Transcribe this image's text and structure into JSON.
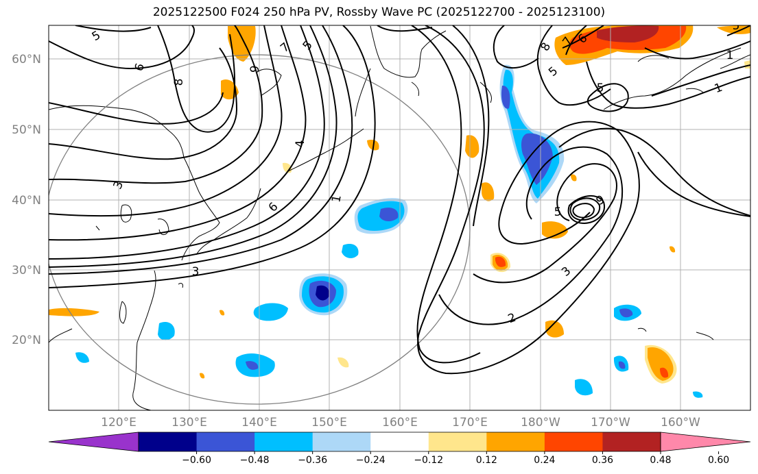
{
  "title": "2025122500 F024 250 hPa PV, Rossby Wave PC (2025122700 - 2025123100)",
  "latitude_labels": [
    "60°N",
    "50°N",
    "40°N",
    "30°N",
    "20°N"
  ],
  "longitude_labels": [
    "120°E",
    "130°E",
    "140°E",
    "150°E",
    "160°E",
    "170°E",
    "180°W",
    "170°W",
    "160°W"
  ],
  "contour_labels": [
    "5",
    "6",
    "8",
    "7",
    "5",
    "9",
    "4",
    "3",
    "6",
    "1",
    "3",
    "8",
    "7",
    "6",
    "5",
    "5",
    "5",
    "9",
    "3",
    "2",
    "1",
    "1",
    "5"
  ],
  "colorbar": {
    "tick_labels": [
      "−0.60",
      "−0.48",
      "−0.36",
      "−0.24",
      "−0.12",
      "0.12",
      "0.24",
      "0.36",
      "0.48",
      "0.60"
    ],
    "colors": [
      "#9933cc",
      "#00008b",
      "#3b55d6",
      "#00bfff",
      "#add8f7",
      "#ffffff",
      "#ffe68c",
      "#ffa500",
      "#ff4500",
      "#b22222",
      "#ff88aa"
    ]
  }
}
